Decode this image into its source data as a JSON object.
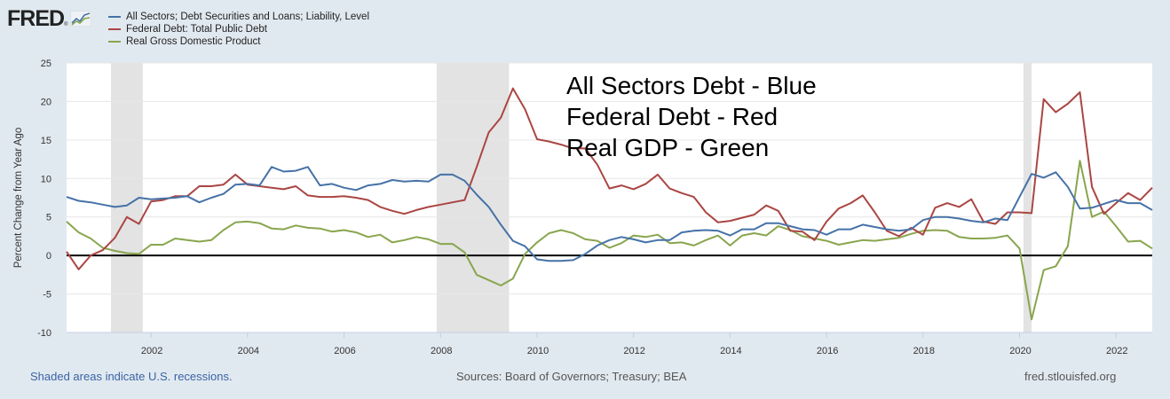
{
  "header": {
    "logo_text": "FRED",
    "logo_reg": "®"
  },
  "footer": {
    "recession_note": "Shaded areas indicate U.S. recessions.",
    "sources": "Sources: Board of Governors; Treasury; BEA",
    "site": "fred.stlouisfed.org"
  },
  "chart_data": {
    "type": "line",
    "title": "",
    "xlabel": "",
    "ylabel": "Percent Change from Year Ago",
    "xlim": [
      2000.25,
      2022.75
    ],
    "ylim": [
      -10,
      25
    ],
    "yticks": [
      -10,
      -5,
      0,
      5,
      10,
      15,
      20,
      25
    ],
    "xticks": [
      2002,
      2004,
      2006,
      2008,
      2010,
      2012,
      2014,
      2016,
      2018,
      2020,
      2022
    ],
    "grid": true,
    "legend_position": "top-left",
    "recessions": [
      [
        2001.17,
        2001.83
      ],
      [
        2007.92,
        2009.42
      ],
      [
        2020.08,
        2020.25
      ]
    ],
    "annotations": [
      "All Sectors Debt - Blue",
      "Federal Debt - Red",
      "Real GDP - Green"
    ],
    "x_start": 2000.25,
    "x_step": 0.25,
    "series": [
      {
        "name": "All Sectors; Debt Securities and Loans; Liability, Level",
        "color": "#4572a7",
        "values": [
          7.6,
          7.1,
          6.9,
          6.6,
          6.3,
          6.5,
          7.5,
          7.3,
          7.4,
          7.5,
          7.7,
          6.9,
          7.5,
          8.0,
          9.2,
          9.3,
          9.1,
          11.5,
          10.9,
          11.0,
          11.5,
          9.1,
          9.3,
          8.8,
          8.5,
          9.1,
          9.3,
          9.8,
          9.6,
          9.7,
          9.6,
          10.5,
          10.5,
          9.7,
          7.9,
          6.3,
          4.0,
          1.9,
          1.2,
          -0.5,
          -0.7,
          -0.7,
          -0.6,
          0.2,
          1.3,
          2.0,
          2.4,
          2.1,
          1.7,
          2.0,
          2.0,
          3.0,
          3.2,
          3.3,
          3.2,
          2.6,
          3.4,
          3.4,
          4.2,
          4.2,
          3.8,
          3.4,
          3.3,
          2.7,
          3.4,
          3.4,
          4.0,
          3.7,
          3.4,
          3.2,
          3.4,
          4.6,
          5.0,
          5.0,
          4.8,
          4.5,
          4.3,
          4.8,
          4.6,
          7.6,
          10.6,
          10.1,
          10.8,
          8.9,
          6.1,
          6.2,
          6.7,
          7.2,
          6.8,
          6.8,
          5.9
        ]
      },
      {
        "name": "Federal Debt: Total Public Debt",
        "color": "#aa4643",
        "values": [
          0.5,
          -1.8,
          0.0,
          0.7,
          2.3,
          5.0,
          4.1,
          7.0,
          7.2,
          7.7,
          7.7,
          9.0,
          9.0,
          9.2,
          10.5,
          9.2,
          9.0,
          8.8,
          8.6,
          9.0,
          7.8,
          7.6,
          7.6,
          7.7,
          7.5,
          7.2,
          6.3,
          5.8,
          5.4,
          5.9,
          6.3,
          6.6,
          6.9,
          7.2,
          11.5,
          16.0,
          17.9,
          21.7,
          19.0,
          15.1,
          14.8,
          14.4,
          13.9,
          13.9,
          11.8,
          8.7,
          9.1,
          8.6,
          9.3,
          10.5,
          8.7,
          8.1,
          7.6,
          5.6,
          4.3,
          4.5,
          4.9,
          5.3,
          6.5,
          5.8,
          3.2,
          3.1,
          2.0,
          4.4,
          6.1,
          6.8,
          7.8,
          5.6,
          3.2,
          2.5,
          3.6,
          2.7,
          6.2,
          6.8,
          6.3,
          7.3,
          4.4,
          4.1,
          5.6,
          5.6,
          5.5,
          20.3,
          18.6,
          19.7,
          21.2,
          8.9,
          5.4,
          6.8,
          8.1,
          7.2,
          8.8
        ]
      },
      {
        "name": "Real Gross Domestic Product",
        "color": "#89a54e",
        "values": [
          4.4,
          3.0,
          2.2,
          1.0,
          0.6,
          0.3,
          0.2,
          1.4,
          1.4,
          2.2,
          2.0,
          1.8,
          2.0,
          3.3,
          4.3,
          4.4,
          4.2,
          3.5,
          3.4,
          3.9,
          3.6,
          3.5,
          3.1,
          3.3,
          3.0,
          2.4,
          2.7,
          1.7,
          2.0,
          2.4,
          2.1,
          1.5,
          1.5,
          0.4,
          -2.5,
          -3.2,
          -3.9,
          -3.0,
          0.2,
          1.7,
          2.9,
          3.3,
          2.9,
          2.1,
          1.9,
          1.0,
          1.6,
          2.6,
          2.4,
          2.7,
          1.6,
          1.7,
          1.3,
          2.0,
          2.6,
          1.3,
          2.6,
          2.9,
          2.6,
          3.8,
          3.3,
          2.5,
          2.2,
          1.9,
          1.4,
          1.7,
          2.0,
          1.9,
          2.1,
          2.3,
          2.8,
          3.2,
          3.3,
          3.2,
          2.4,
          2.2,
          2.2,
          2.3,
          2.6,
          0.9,
          -8.3,
          -1.9,
          -1.4,
          1.2,
          12.3,
          5.0,
          5.7,
          3.8,
          1.8,
          1.9,
          0.9
        ]
      }
    ]
  }
}
